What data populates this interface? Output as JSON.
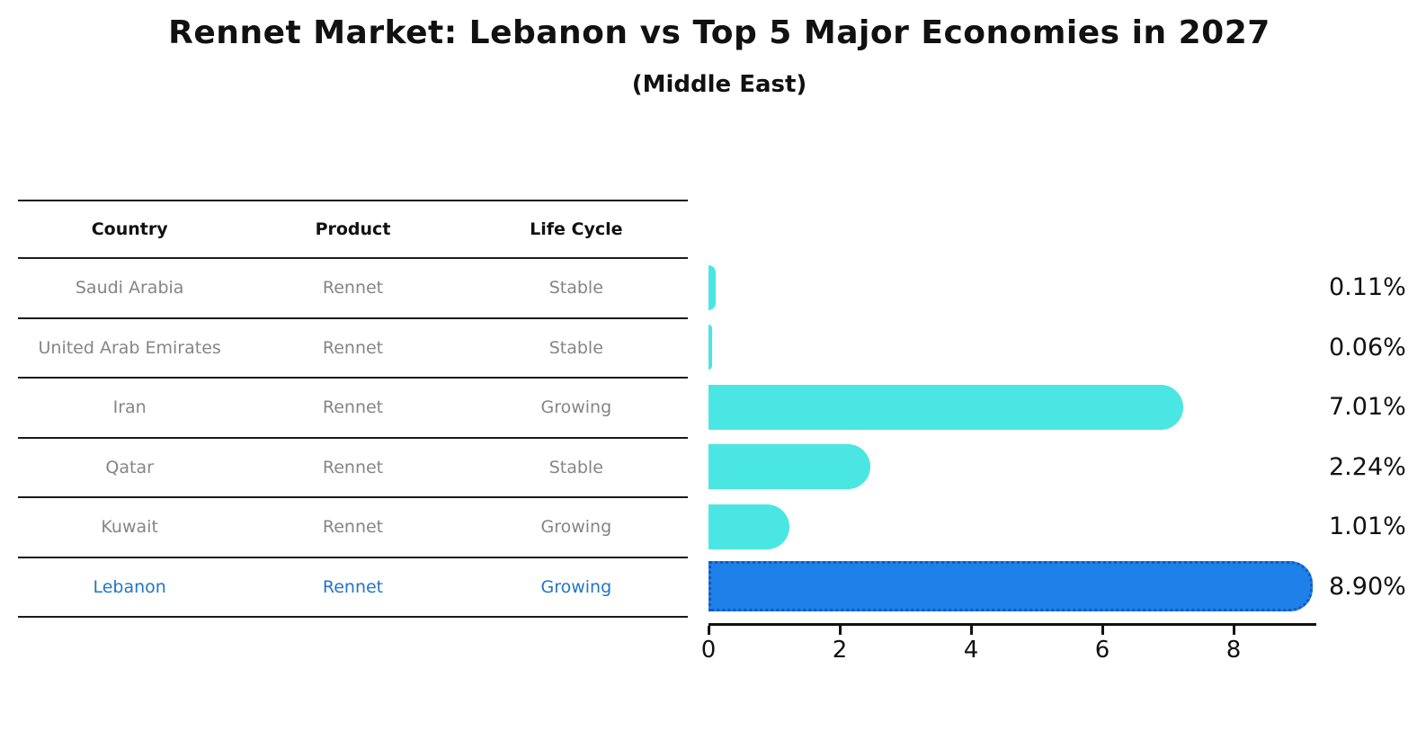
{
  "title": "Rennet Market: Lebanon vs Top 5 Major Economies in 2027",
  "subtitle": "(Middle East)",
  "table": {
    "headers": [
      "Country",
      "Product",
      "Life Cycle"
    ],
    "rows": [
      {
        "country": "Saudi Arabia",
        "product": "Rennet",
        "life_cycle": "Stable",
        "highlight": false
      },
      {
        "country": "United Arab Emirates",
        "product": "Rennet",
        "life_cycle": "Stable",
        "highlight": false
      },
      {
        "country": "Iran",
        "product": "Rennet",
        "life_cycle": "Growing",
        "highlight": false
      },
      {
        "country": "Qatar",
        "product": "Rennet",
        "life_cycle": "Stable",
        "highlight": false
      },
      {
        "country": "Kuwait",
        "product": "Rennet",
        "life_cycle": "Growing",
        "highlight": false
      },
      {
        "country": "Lebanon",
        "product": "Rennet",
        "life_cycle": "Growing",
        "highlight": true
      }
    ]
  },
  "chart_data": {
    "type": "bar",
    "orientation": "horizontal",
    "categories": [
      "Saudi Arabia",
      "United Arab Emirates",
      "Iran",
      "Qatar",
      "Kuwait",
      "Lebanon"
    ],
    "values": [
      0.11,
      0.06,
      7.01,
      2.24,
      1.01,
      8.9
    ],
    "value_labels": [
      "0.11%",
      "0.06%",
      "7.01%",
      "2.24%",
      "1.01%",
      "8.90%"
    ],
    "x_ticks": [
      0,
      2,
      4,
      6,
      8
    ],
    "xlim": [
      0,
      9.2
    ],
    "grid": false,
    "legend": "none",
    "bar_color": "#49E6E3",
    "highlight_index": 5,
    "highlight_color": "#1E80E8",
    "highlight_border_color": "#1359C4"
  },
  "colors": {
    "text_black": "#111111",
    "text_gray": "#858585",
    "accent_text": "#2176C7",
    "table_line": "#1A1A1A"
  }
}
